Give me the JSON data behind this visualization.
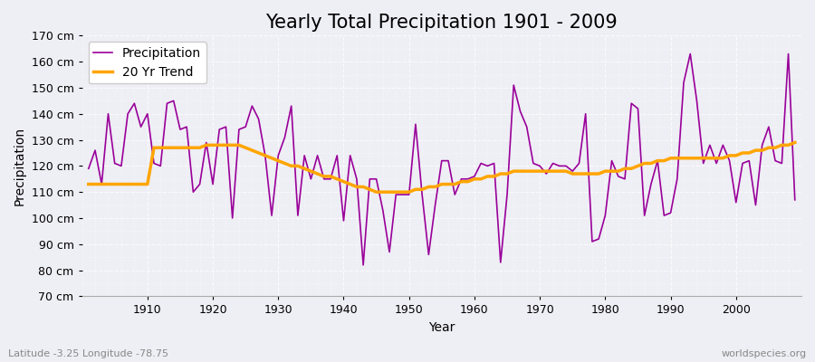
{
  "title": "Yearly Total Precipitation 1901 - 2009",
  "xlabel": "Year",
  "ylabel": "Precipitation",
  "lat_lon_label": "Latitude -3.25 Longitude -78.75",
  "source_label": "worldspecies.org",
  "ylim": [
    70,
    170
  ],
  "yticks": [
    70,
    80,
    90,
    100,
    110,
    120,
    130,
    140,
    150,
    160,
    170
  ],
  "years": [
    1901,
    1902,
    1903,
    1904,
    1905,
    1906,
    1907,
    1908,
    1909,
    1910,
    1911,
    1912,
    1913,
    1914,
    1915,
    1916,
    1917,
    1918,
    1919,
    1920,
    1921,
    1922,
    1923,
    1924,
    1925,
    1926,
    1927,
    1928,
    1929,
    1930,
    1931,
    1932,
    1933,
    1934,
    1935,
    1936,
    1937,
    1938,
    1939,
    1940,
    1941,
    1942,
    1943,
    1944,
    1945,
    1946,
    1947,
    1948,
    1949,
    1950,
    1951,
    1952,
    1953,
    1954,
    1955,
    1956,
    1957,
    1958,
    1959,
    1960,
    1961,
    1962,
    1963,
    1964,
    1965,
    1966,
    1967,
    1968,
    1969,
    1970,
    1971,
    1972,
    1973,
    1974,
    1975,
    1976,
    1977,
    1978,
    1979,
    1980,
    1981,
    1982,
    1983,
    1984,
    1985,
    1986,
    1987,
    1988,
    1989,
    1990,
    1991,
    1992,
    1993,
    1994,
    1995,
    1996,
    1997,
    1998,
    1999,
    2000,
    2001,
    2002,
    2003,
    2004,
    2005,
    2006,
    2007,
    2008,
    2009
  ],
  "precipitation": [
    119,
    126,
    113,
    140,
    121,
    120,
    140,
    144,
    135,
    140,
    121,
    120,
    144,
    145,
    134,
    135,
    110,
    113,
    129,
    113,
    134,
    135,
    100,
    134,
    135,
    143,
    138,
    124,
    101,
    124,
    131,
    143,
    101,
    124,
    115,
    124,
    115,
    115,
    124,
    99,
    124,
    115,
    82,
    115,
    115,
    103,
    87,
    109,
    109,
    109,
    136,
    109,
    86,
    105,
    122,
    122,
    109,
    115,
    115,
    116,
    121,
    120,
    121,
    83,
    109,
    151,
    141,
    135,
    121,
    120,
    117,
    121,
    120,
    120,
    118,
    121,
    140,
    91,
    92,
    101,
    122,
    116,
    115,
    144,
    142,
    101,
    113,
    122,
    101,
    102,
    115,
    152,
    163,
    145,
    121,
    128,
    121,
    128,
    122,
    106,
    121,
    122,
    105,
    128,
    135,
    122,
    121,
    163,
    107
  ],
  "trend": [
    113,
    113,
    113,
    113,
    113,
    113,
    113,
    113,
    113,
    113,
    127,
    127,
    127,
    127,
    127,
    127,
    127,
    127,
    128,
    128,
    128,
    128,
    128,
    128,
    127,
    126,
    125,
    124,
    123,
    122,
    121,
    120,
    120,
    119,
    118,
    117,
    116,
    116,
    115,
    114,
    113,
    112,
    112,
    111,
    110,
    110,
    110,
    110,
    110,
    110,
    111,
    111,
    112,
    112,
    113,
    113,
    113,
    114,
    114,
    115,
    115,
    116,
    116,
    117,
    117,
    118,
    118,
    118,
    118,
    118,
    118,
    118,
    118,
    118,
    117,
    117,
    117,
    117,
    117,
    118,
    118,
    118,
    119,
    119,
    120,
    121,
    121,
    122,
    122,
    123,
    123,
    123,
    123,
    123,
    123,
    123,
    123,
    123,
    124,
    124,
    125,
    125,
    126,
    126,
    127,
    127,
    128,
    128,
    129
  ],
  "precip_color": "#990099",
  "trend_color": "#FFA500",
  "bg_color": "#EEEEF5",
  "grid_color": "#FFFFFF",
  "title_fontsize": 15,
  "label_fontsize": 10,
  "tick_fontsize": 9,
  "xlim_left": 1900,
  "xlim_right": 2010
}
